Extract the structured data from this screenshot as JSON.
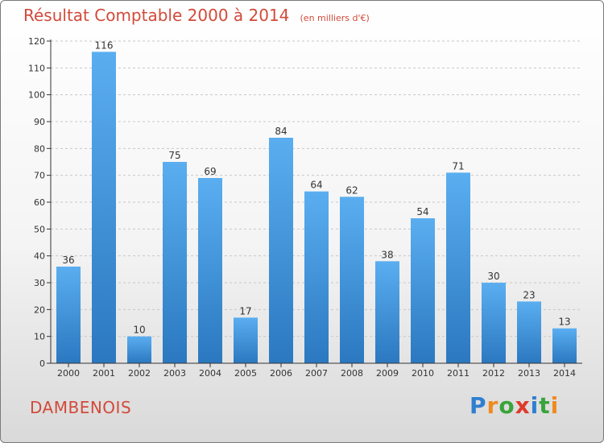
{
  "chart_data": {
    "type": "bar",
    "title": "Résultat Comptable 2000 à 2014",
    "subtitle": "(en milliers d'€)",
    "categories": [
      "2000",
      "2001",
      "2002",
      "2003",
      "2004",
      "2005",
      "2006",
      "2007",
      "2008",
      "2009",
      "2010",
      "2011",
      "2012",
      "2013",
      "2014"
    ],
    "values": [
      36,
      116,
      10,
      75,
      69,
      17,
      84,
      64,
      62,
      38,
      54,
      71,
      30,
      23,
      13
    ],
    "ylim": [
      0,
      120
    ],
    "yticks": [
      0,
      10,
      20,
      30,
      40,
      50,
      60,
      70,
      80,
      90,
      100,
      110,
      120
    ],
    "xlabel": "",
    "ylabel": "",
    "bar_color": "#3d8fd6"
  },
  "commune": "DAMBENOIS",
  "logo": {
    "letters": [
      "P",
      "r",
      "o",
      "x",
      "i",
      "t",
      "i"
    ],
    "colors": [
      "#2f7fd0",
      "#f08a1e",
      "#3aa33a",
      "#e03a2a",
      "#2f7fd0",
      "#3aa33a",
      "#f08a1e"
    ]
  }
}
